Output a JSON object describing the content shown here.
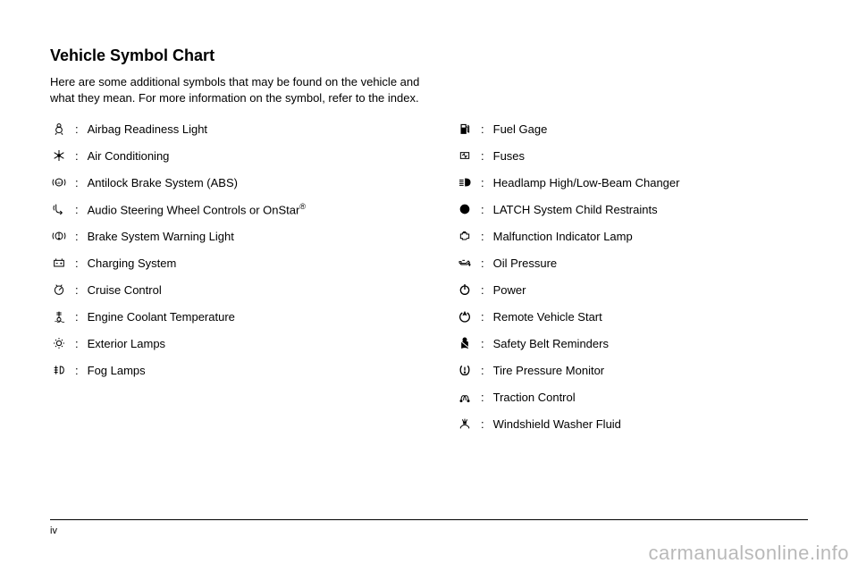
{
  "title": "Vehicle Symbol Chart",
  "intro": "Here are some additional symbols that may be found on the vehicle and what they mean. For more information on the symbol, refer to the index.",
  "page_number": "iv",
  "watermark": "carmanualsonline.info",
  "left": [
    {
      "icon": "airbag",
      "label": "Airbag Readiness Light"
    },
    {
      "icon": "ac",
      "label": "Air Conditioning"
    },
    {
      "icon": "abs",
      "label": "Antilock Brake System (ABS)"
    },
    {
      "icon": "audio",
      "label": "Audio Steering Wheel Controls or OnStar",
      "sup": "®"
    },
    {
      "icon": "brake",
      "label": "Brake System Warning Light"
    },
    {
      "icon": "battery",
      "label": "Charging System"
    },
    {
      "icon": "cruise",
      "label": "Cruise Control"
    },
    {
      "icon": "coolant",
      "label": "Engine Coolant Temperature"
    },
    {
      "icon": "lamps",
      "label": "Exterior Lamps"
    },
    {
      "icon": "fog",
      "label": "Fog Lamps"
    }
  ],
  "right": [
    {
      "icon": "fuel",
      "label": "Fuel Gage"
    },
    {
      "icon": "fuse",
      "label": "Fuses"
    },
    {
      "icon": "beam",
      "label": "Headlamp High/Low-Beam Changer"
    },
    {
      "icon": "latch",
      "label": "LATCH System Child Restraints"
    },
    {
      "icon": "mil",
      "label": "Malfunction Indicator Lamp"
    },
    {
      "icon": "oil",
      "label": "Oil Pressure"
    },
    {
      "icon": "power",
      "label": "Power"
    },
    {
      "icon": "remote",
      "label": "Remote Vehicle Start"
    },
    {
      "icon": "belt",
      "label": "Safety Belt Reminders"
    },
    {
      "icon": "tire",
      "label": "Tire Pressure Monitor"
    },
    {
      "icon": "traction",
      "label": "Traction Control"
    },
    {
      "icon": "washer",
      "label": "Windshield Washer Fluid"
    }
  ],
  "icons": {
    "airbag": "<svg viewBox='0 0 24 24'><g fill='none' stroke='#000' stroke-width='1.5'><circle cx='12' cy='7' r='3'/><circle cx='12' cy='14' r='5'/><path d='M8 19 L6 22 M16 19 L18 22'/></g></svg>",
    "ac": "<svg viewBox='0 0 24 24'><g fill='none' stroke='#000' stroke-width='1.5'><path d='M12 3 V21 M4 7 L20 17 M4 17 L20 7'/><circle cx='12' cy='12' r='2' fill='#000'/></g></svg>",
    "abs": "<svg viewBox='0 0 24 24'><g fill='none' stroke='#000' stroke-width='1.5'><circle cx='12' cy='12' r='6'/><path d='M3 7 A10 10 0 0 0 3 17 M21 7 A10 10 0 0 1 21 17'/><text x='12' y='15' font-size='6' text-anchor='middle' fill='#000' stroke='none'>ABS</text></g></svg>",
    "audio": "<svg viewBox='0 0 24 24'><g fill='none' stroke='#000' stroke-width='1.5'><path d='M7 4 L7 12 Q7 18 13 18 L17 18'/><path d='M4 6 Q 2 10 4 14'/><path d='M14 15 L17 18 L14 21'/></g></svg>",
    "brake": "<svg viewBox='0 0 24 24'><g fill='none' stroke='#000' stroke-width='1.5'><circle cx='12' cy='12' r='6'/><path d='M3 7 A10 10 0 0 0 3 17 M21 7 A10 10 0 0 1 21 17'/><line x1='12' y1='7' x2='12' y2='13'/><circle cx='12' cy='16' r='0.8' fill='#000'/></g></svg>",
    "battery": "<svg viewBox='0 0 24 24'><g fill='none' stroke='#000' stroke-width='1.5'><rect x='4' y='8' width='16' height='10'/><path d='M7 8 V5 M17 8 V5'/><line x1='7' y1='13' x2='10' y2='13'/><line x1='14' y1='13' x2='17' y2='13'/><line x1='15.5' y1='11.5' x2='15.5' y2='14.5'/></g></svg>",
    "cruise": "<svg viewBox='0 0 24 24'><g fill='none' stroke='#000' stroke-width='1.5'><circle cx='12' cy='13' r='7'/><path d='M12 13 L16 9'/><path d='M7 4 L9 6 M17 4 L15 6'/></g></svg>",
    "coolant": "<svg viewBox='0 0 24 24'><g fill='none' stroke='#000' stroke-width='1.5'><path d='M12 4 V14'/><circle cx='12' cy='17' r='3'/><path d='M8 6 H16 M8 9 H16'/><path d='M5 21 Q7 19 9 21 Q11 23 13 21 Q15 19 17 21 Q19 23 21 21' stroke-width='1'/></g></svg>",
    "lamps": "<svg viewBox='0 0 24 24'><g fill='none' stroke='#000' stroke-width='1.5'><circle cx='12' cy='12' r='4'/><path d='M12 3 V5 M12 19 V21 M3 12 H5 M19 12 H21 M6 6 L7.5 7.5 M16.5 16.5 L18 18 M6 18 L7.5 16.5 M16.5 7.5 L18 6'/></g></svg>",
    "fog": "<svg viewBox='0 0 24 24'><g fill='none' stroke='#000' stroke-width='1.5'><path d='M14 6 Q20 6 20 12 Q20 18 14 18 Z'/><path d='M4 8 L10 8 M4 12 L10 12 M4 16 L10 16'/><line x1='7' y1='5' x2='7' y2='19'/></g></svg>",
    "fuel": "<svg viewBox='0 0 24 24'><g fill='#000' stroke='#000' stroke-width='1.5'><path d='M6 5 H14 V20 H6 Z' fill='#000'/><path d='M14 9 H17 V16 Q17 18 19 18 V8 L17 6' fill='none'/><rect x='7' y='6' width='6' height='4' fill='#fff' stroke='none'/></g></svg>",
    "fuse": "<svg viewBox='0 0 24 24'><g fill='none' stroke='#000' stroke-width='1.5'><rect x='5' y='7' width='14' height='10'/><path d='M8 12 L11 9 L13 15 L16 12'/></g></svg>",
    "beam": "<svg viewBox='0 0 24 24'><g fill='none' stroke='#000' stroke-width='1.5'><path d='M13 6 Q21 6 21 12 Q21 18 13 18 Z' fill='#000'/><path d='M3 8 L10 8 M3 11 L10 11 M3 14 L10 14 M3 17 L10 17'/></g></svg>",
    "latch": "<svg viewBox='0 0 24 24'><g fill='#000'><circle cx='12' cy='12' r='8'/></g></svg>",
    "mil": "<svg viewBox='0 0 24 24'><g fill='none' stroke='#000' stroke-width='1.5'><path d='M5 9 H8 V7 H15 V9 H19 V16 H16 L14 18 H8 V16 H5 Z'/><path d='M10 7 V5 H13 V7'/></g></svg>",
    "oil": "<svg viewBox='0 0 24 24'><g fill='none' stroke='#000' stroke-width='1.5'><path d='M3 10 H6 V13 H14 L18 9 L20 11 L16 15 H6 L3 12 Z'/><path d='M20 13 Q22 15 20 17 Q18 15 20 13' fill='#000'/><path d='M8 8 H12'/></g></svg>",
    "power": "<svg viewBox='0 0 24 24'><g fill='none' stroke='#000' stroke-width='2'><circle cx='12' cy='13' r='7'/><line x1='12' y1='3' x2='12' y2='12'/></g></svg>",
    "remote": "<svg viewBox='0 0 24 24'><g fill='none' stroke='#000' stroke-width='2'><path d='M8 6 A 8 8 0 1 0 16 6'/><path d='M12 4 L15 10 L12 9 L9 10 Z' fill='#000' stroke-width='1'/></g></svg>",
    "belt": "<svg viewBox='0 0 24 24'><g fill='none' stroke='#000' stroke-width='1.5'><circle cx='12' cy='6' r='3' fill='#000'/><path d='M7 10 Q12 8 17 10 L17 20 Q12 18 7 20 Z' fill='#000'/><path d='M6 9 L18 19' stroke='#fff' stroke-width='1.5'/></g></svg>",
    "tire": "<svg viewBox='0 0 24 24'><g fill='none' stroke='#000' stroke-width='2'><path d='M7 5 Q4 9 5 14 Q6 19 10 20 H14 Q18 19 19 14 Q20 9 17 5'/><line x1='12' y1='7' x2='12' y2='13'/><circle cx='12' cy='16' r='0.8' fill='#000'/></g></svg>",
    "traction": "<svg viewBox='0 0 24 24'><g fill='none' stroke='#000' stroke-width='1.5'><path d='M6 18 Q6 10 10 10 Q14 10 14 18'/><path d='M10 18 Q10 10 14 10 Q18 10 18 18'/><circle cx='6' cy='19' r='1.5' fill='#000'/><circle cx='18' cy='19' r='1.5' fill='#000'/></g></svg>",
    "washer": "<svg viewBox='0 0 24 24'><g fill='none' stroke='#000' stroke-width='1.5'><path d='M5 18 Q12 10 19 18'/><path d='M5 18 L5 20 M19 18 L19 20'/><path d='M10 9 L8 5 M12 8 L12 4 M14 9 L16 5'/><rect x='10' y='9' width='4' height='3' fill='#000'/></g></svg>"
  }
}
